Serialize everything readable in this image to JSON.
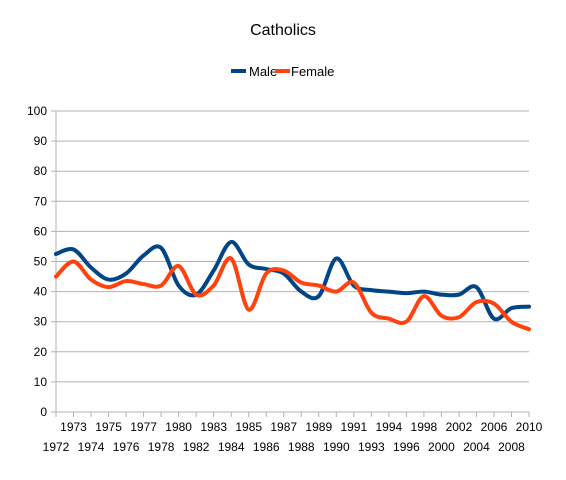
{
  "chart_data": {
    "type": "line",
    "title": "Catholics",
    "xlabel": "",
    "ylabel": "",
    "ylim": [
      0,
      100
    ],
    "yticks": [
      0,
      10,
      20,
      30,
      40,
      50,
      60,
      70,
      80,
      90,
      100
    ],
    "grid": "horizontal",
    "legend_position": "top",
    "smoothed": true,
    "categories": [
      "1972",
      "1973",
      "1974",
      "1975",
      "1976",
      "1977",
      "1978",
      "1980",
      "1982",
      "1983",
      "1984",
      "1985",
      "1986",
      "1987",
      "1988",
      "1989",
      "1990",
      "1991",
      "1993",
      "1994",
      "1996",
      "1998",
      "2000",
      "2002",
      "2004",
      "2006",
      "2008",
      "2010"
    ],
    "series": [
      {
        "name": "Male",
        "color": "#004586",
        "values": [
          52.5,
          54,
          48,
          44,
          46,
          52,
          54.5,
          42,
          39,
          47,
          56.5,
          49,
          47.5,
          46,
          40,
          38.5,
          51,
          42,
          40.5,
          40,
          39.5,
          40,
          39,
          39,
          41.5,
          31,
          34.5,
          35
        ]
      },
      {
        "name": "Female",
        "color": "#ff420e",
        "values": [
          45,
          50,
          44,
          41.5,
          43.5,
          42.5,
          42,
          48.5,
          39,
          42,
          51,
          34,
          46,
          47,
          43,
          42,
          40,
          43,
          33,
          31,
          30,
          38.5,
          32,
          31.5,
          36.5,
          36,
          30,
          27.5
        ]
      }
    ]
  }
}
